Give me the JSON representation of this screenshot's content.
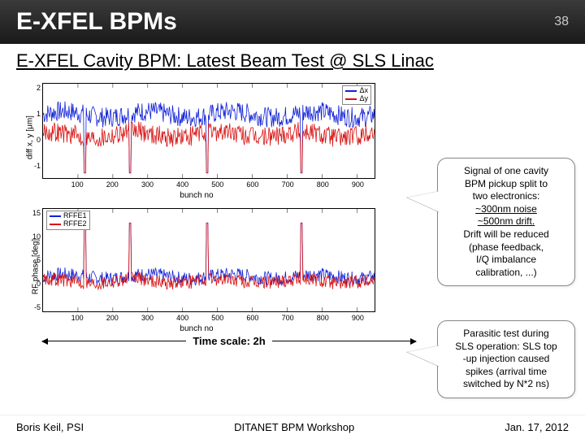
{
  "header": {
    "title": "E-XFEL BPMs",
    "page": "38"
  },
  "subtitle": "E-XFEL Cavity BPM: Latest Beam Test @ SLS Linac",
  "callout1": {
    "line1": "Signal of one cavity",
    "line2": "BPM pickup split to",
    "line3": "two electronics:",
    "noise": "~300nm noise",
    "drift": "~500nm drift.",
    "line4": "Drift will be reduced",
    "line5": "(phase feedback,",
    "line6": "I/Q imbalance",
    "line7": "calibration, ...)"
  },
  "callout2": {
    "line1": "Parasitic test during",
    "line2": "SLS operation: SLS top",
    "line3": "-up injection caused",
    "line4": "spikes (arrival time",
    "line5": "switched by N*2 ns)"
  },
  "timescale": "Time scale: 2h",
  "footer": {
    "left": "Boris Keil, PSI",
    "center": "DITANET BPM Workshop",
    "right": "Jan. 17, 2012"
  },
  "chart1": {
    "type": "line-noise",
    "ylabel": "diff x, y [μm]",
    "xlabel": "bunch no",
    "ylim": [
      -1.5,
      2.2
    ],
    "yticks": [
      -1,
      0,
      1,
      2
    ],
    "xlim": [
      0,
      950
    ],
    "xticks": [
      100,
      200,
      300,
      400,
      500,
      600,
      700,
      800,
      900
    ],
    "series": [
      {
        "name": "Δx",
        "color": "#1020d8",
        "mean": 1.0,
        "amp": 0.4,
        "spikes": [
          120,
          250,
          470,
          740
        ],
        "spike_to": -1.3
      },
      {
        "name": "Δy",
        "color": "#d81010",
        "mean": 0.2,
        "amp": 0.4,
        "spikes": [
          120,
          250,
          470,
          740
        ],
        "spike_to": -1.3
      }
    ],
    "legend_pos": "top-right",
    "grid_color": "#cccccc",
    "bg": "#ffffff",
    "font_size_axis": 10
  },
  "chart2": {
    "type": "line-noise",
    "ylabel": "RF phase [deg]",
    "xlabel": "bunch no",
    "ylim": [
      -6,
      16
    ],
    "yticks": [
      -5,
      0,
      5,
      10,
      15
    ],
    "xlim": [
      0,
      950
    ],
    "xticks": [
      100,
      200,
      300,
      400,
      500,
      600,
      700,
      800,
      900
    ],
    "series": [
      {
        "name": "RFFE1",
        "color": "#1020d8",
        "mean": 1.5,
        "amp": 1.5,
        "spikes": [
          120,
          250,
          470,
          740
        ],
        "spike_to": 13
      },
      {
        "name": "RFFE2",
        "color": "#d81010",
        "mean": 0.5,
        "amp": 1.5,
        "spikes": [
          120,
          250,
          470,
          740
        ],
        "spike_to": 13
      }
    ],
    "legend_pos": "top-left",
    "grid_color": "#cccccc",
    "bg": "#ffffff",
    "font_size_axis": 10
  }
}
